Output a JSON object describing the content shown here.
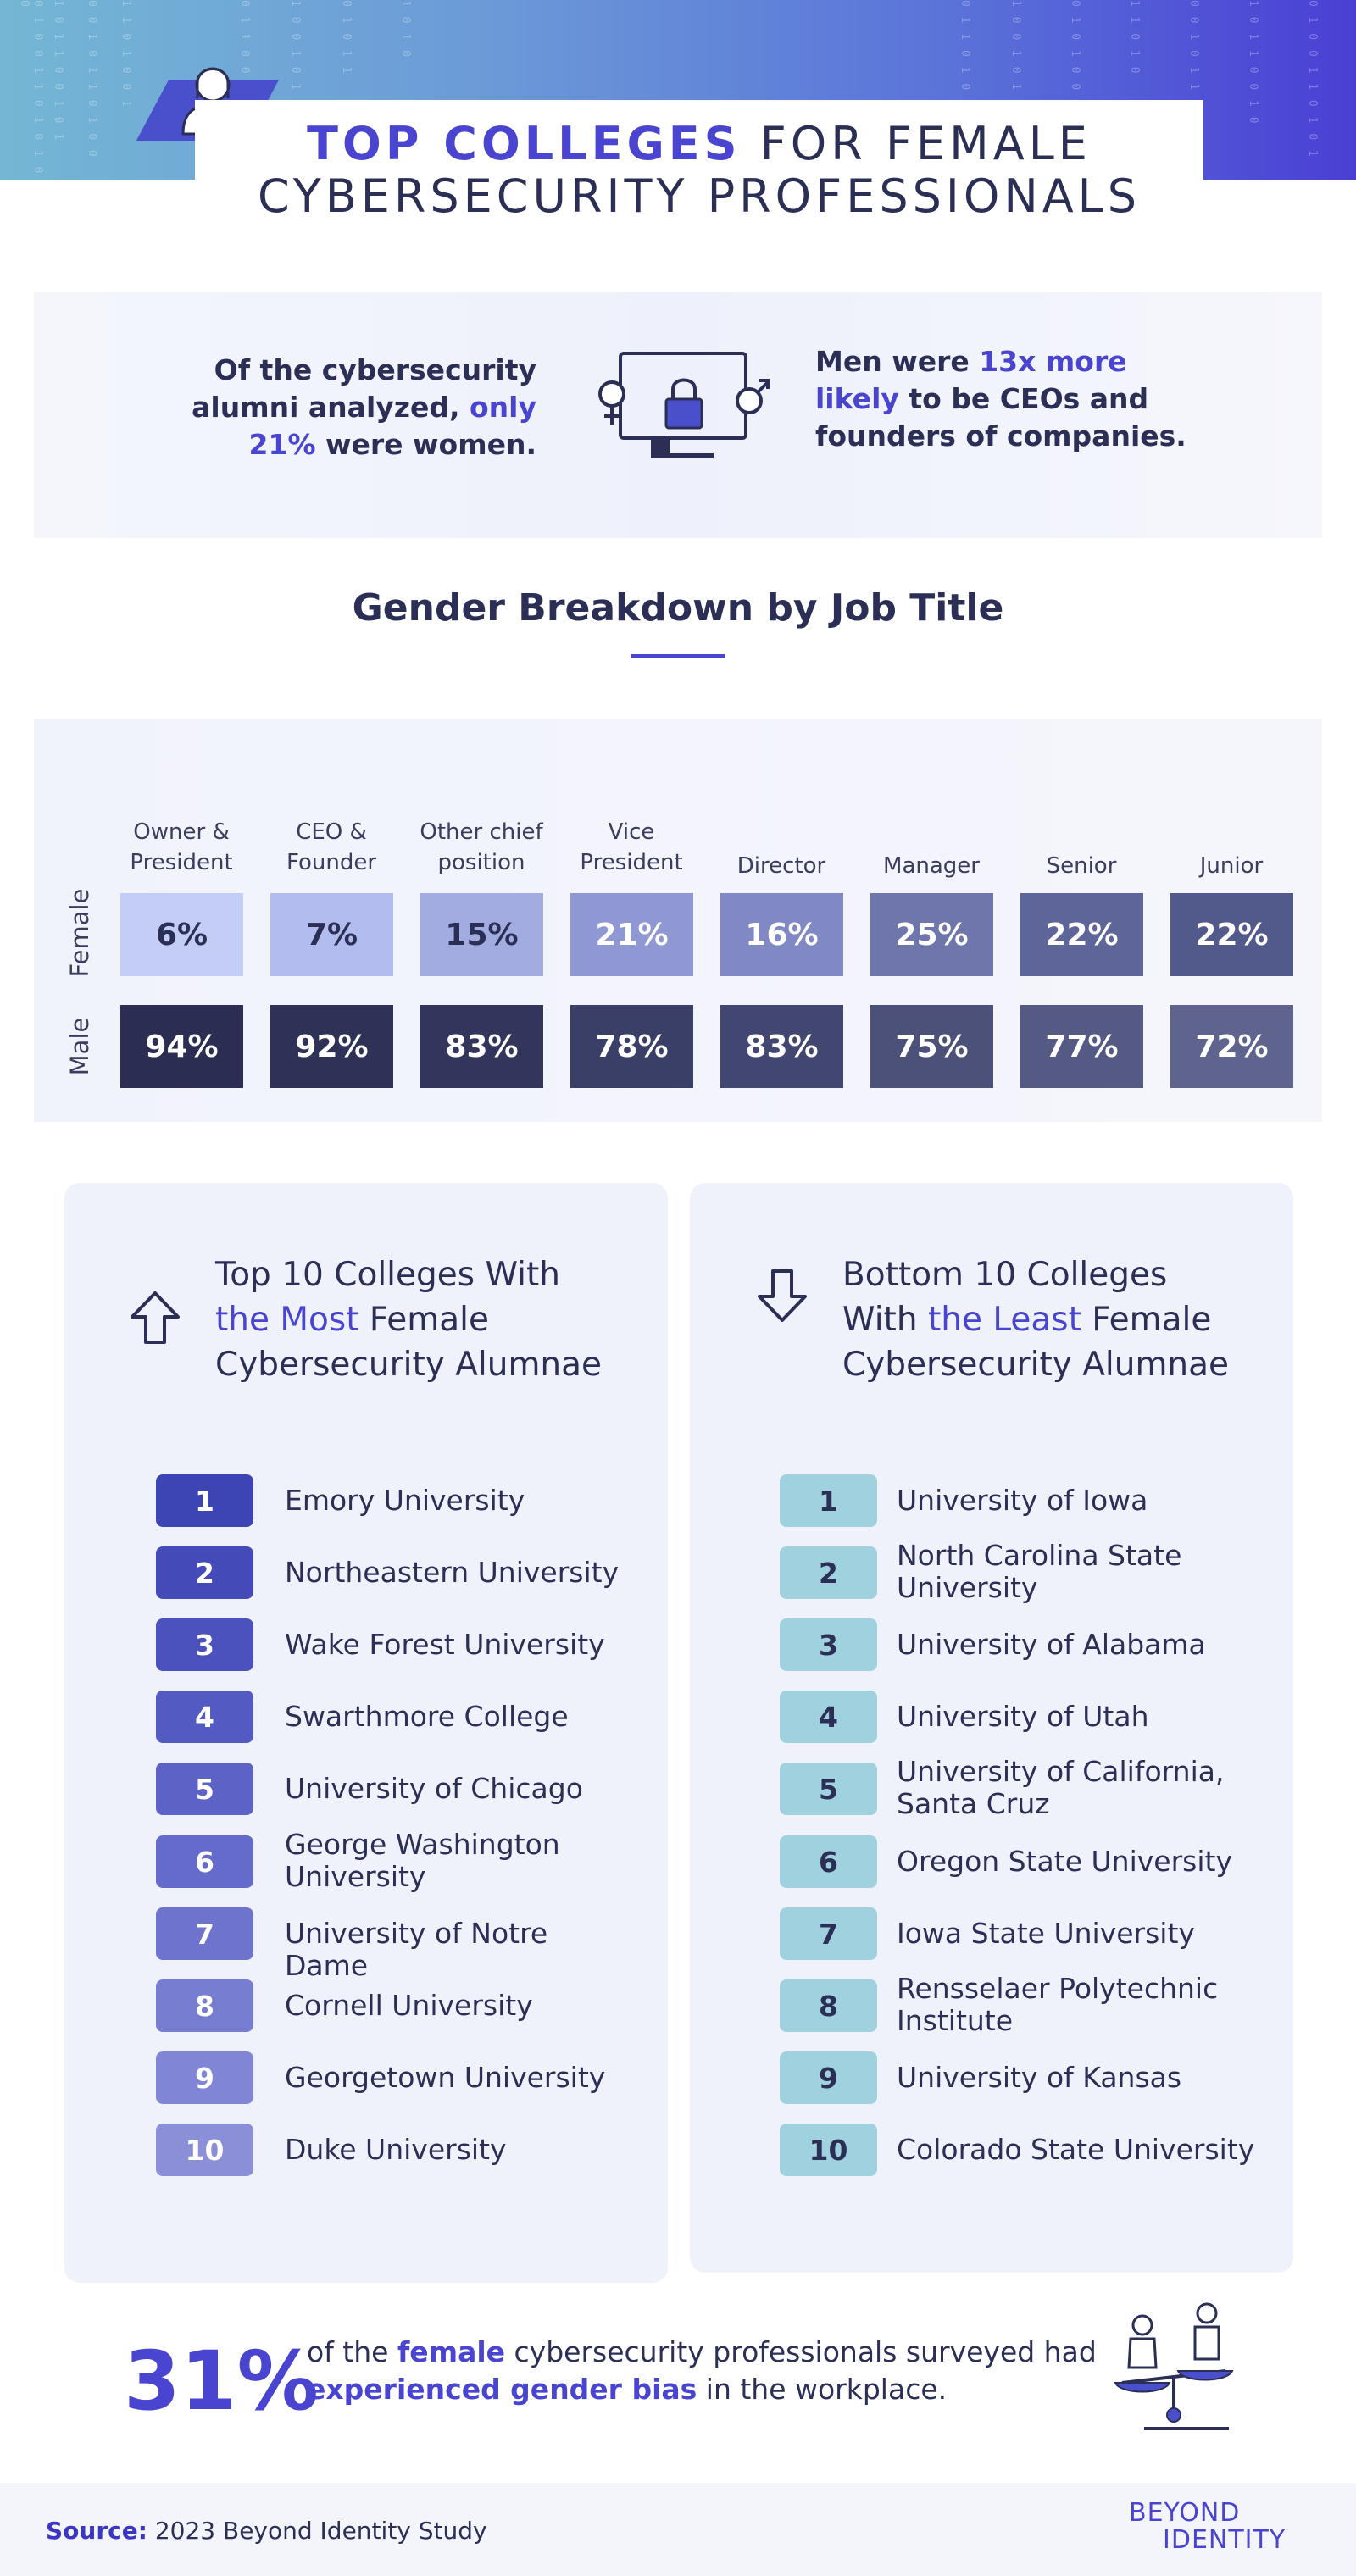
{
  "header": {
    "title_highlight": "TOP COLLEGES",
    "title_rest": " FOR FEMALE",
    "title_line2": "CYBERSECURITY PROFESSIONALS",
    "avatar_icon": "female-user-icon"
  },
  "stats": {
    "left_prefix": "Of the cybersecurity alumni analyzed, ",
    "left_accent": "only 21%",
    "left_suffix": " were women.",
    "right_prefix": "Men were ",
    "right_accent": "13x more likely",
    "right_suffix": " to be CEOs and founders of companies.",
    "icon": "gender-lock-monitor-icon"
  },
  "breakdown": {
    "heading": "Gender Breakdown by Job Title",
    "row_labels": [
      "Female",
      "Male"
    ],
    "columns": [
      {
        "label": "Owner & President",
        "female": "6%",
        "male": "94%"
      },
      {
        "label": "CEO & Founder",
        "female": "7%",
        "male": "92%"
      },
      {
        "label": "Other chief position",
        "female": "15%",
        "male": "83%"
      },
      {
        "label": "Vice President",
        "female": "21%",
        "male": "78%"
      },
      {
        "label": "Director",
        "female": "16%",
        "male": "83%"
      },
      {
        "label": "Manager",
        "female": "25%",
        "male": "75%"
      },
      {
        "label": "Senior",
        "female": "22%",
        "male": "77%"
      },
      {
        "label": "Junior",
        "female": "22%",
        "male": "72%"
      }
    ],
    "female_colors": [
      "#c3cdf6",
      "#b3bcee",
      "#a3ace0",
      "#8f98d2",
      "#8089c3",
      "#6e76ac",
      "#5e6699",
      "#525a8c"
    ],
    "male_colors": [
      "#2b2e52",
      "#2e3257",
      "#32365d",
      "#3a3f67",
      "#414770",
      "#4b5179",
      "#545a83",
      "#5e648d"
    ]
  },
  "top_list": {
    "title_line1": "Top 10 Colleges With",
    "title_accent": "the Most",
    "title_rest2": " Female",
    "title_line3": "Cybersecurity Alumnae",
    "icon": "arrow-up-icon",
    "items": [
      {
        "rank": "1",
        "name": "Emory University"
      },
      {
        "rank": "2",
        "name": "Northeastern University"
      },
      {
        "rank": "3",
        "name": "Wake Forest University"
      },
      {
        "rank": "4",
        "name": "Swarthmore College"
      },
      {
        "rank": "5",
        "name": "University of Chicago"
      },
      {
        "rank": "6",
        "name": "George Washington University"
      },
      {
        "rank": "7",
        "name": "University of Notre Dame"
      },
      {
        "rank": "8",
        "name": "Cornell University"
      },
      {
        "rank": "9",
        "name": "Georgetown University"
      },
      {
        "rank": "10",
        "name": "Duke University"
      }
    ],
    "badge_colors": [
      "#3d44b3",
      "#444bb8",
      "#4b52bd",
      "#535ac2",
      "#5c62c6",
      "#656bca",
      "#6e74ce",
      "#777dd1",
      "#8086d5",
      "#8a8fd8"
    ]
  },
  "bottom_list": {
    "title_line1": "Bottom 10 Colleges",
    "title_pre2": "With ",
    "title_accent": "the Least",
    "title_rest2": " Female",
    "title_line3": "Cybersecurity Alumnae",
    "icon": "arrow-down-icon",
    "items": [
      {
        "rank": "1",
        "name": "University of Iowa"
      },
      {
        "rank": "2",
        "name": "North Carolina State University"
      },
      {
        "rank": "3",
        "name": "University of Alabama"
      },
      {
        "rank": "4",
        "name": "University of Utah"
      },
      {
        "rank": "5",
        "name": "University of California, Santa Cruz"
      },
      {
        "rank": "6",
        "name": "Oregon State University"
      },
      {
        "rank": "7",
        "name": "Iowa State University"
      },
      {
        "rank": "8",
        "name": "Rensselaer Polytechnic Institute"
      },
      {
        "rank": "9",
        "name": "University of Kansas"
      },
      {
        "rank": "10",
        "name": "Colorado State University"
      }
    ],
    "badge_color": "#9fd1de"
  },
  "bias": {
    "percent": "31%",
    "text_1": "of the ",
    "text_female": "female",
    "text_2": " cybersecurity professionals surveyed had ",
    "text_bold": "experienced gender bias",
    "text_3": " in the workplace.",
    "icon": "gender-scale-icon"
  },
  "footer": {
    "source_label": "Source:",
    "source_text": " 2023 Beyond Identity Study",
    "logo_line1": "BEYOND",
    "logo_line2": "IDENTITY"
  },
  "colors": {
    "accent": "#4a45d0",
    "text": "#2b2f55"
  }
}
